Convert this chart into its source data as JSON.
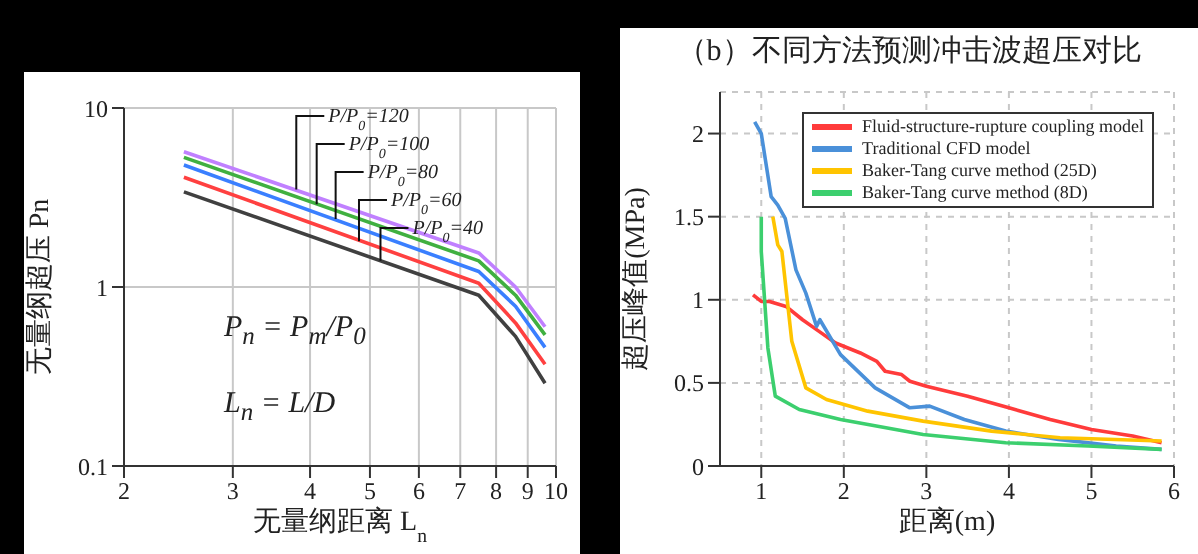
{
  "chart_data": [
    {
      "type": "line",
      "xlabel": "无量纲距离 L$_{n}$",
      "ylabel": "无量纲超压 Pn",
      "log": "xy",
      "xlim": [
        2,
        10
      ],
      "xticks": [
        2,
        3,
        4,
        5,
        6,
        7,
        8,
        9,
        10
      ],
      "ylim": [
        0.1,
        10
      ],
      "yticks": [
        0.1,
        1,
        10
      ],
      "grid": true,
      "marker": "none",
      "line_style": "solid",
      "series": [
        {
          "color": "#c080ff",
          "x": [
            2.5,
            7.5,
            8.6,
            9.6
          ],
          "values": [
            5.7,
            1.55,
            1.0,
            0.6
          ]
        },
        {
          "color": "#40b040",
          "x": [
            2.5,
            7.5,
            8.6,
            9.6
          ],
          "values": [
            5.3,
            1.4,
            0.9,
            0.54
          ]
        },
        {
          "color": "#3a7fff",
          "x": [
            2.5,
            7.5,
            8.6,
            9.6
          ],
          "values": [
            4.8,
            1.22,
            0.78,
            0.46
          ]
        },
        {
          "color": "#ff4040",
          "x": [
            2.5,
            7.5,
            8.6,
            9.6
          ],
          "values": [
            4.1,
            1.05,
            0.63,
            0.37
          ]
        },
        {
          "color": "#404040",
          "x": [
            2.5,
            7.5,
            8.6,
            9.6
          ],
          "values": [
            3.4,
            0.9,
            0.53,
            0.29
          ]
        }
      ],
      "annotations": [
        {
          "text": "P/P$_{0}$=120",
          "x": 3.8,
          "y": 3.5
        },
        {
          "text": "P/P$_{0}$=100",
          "x": 4.1,
          "y": 2.9
        },
        {
          "text": "P/P$_{0}$=80",
          "x": 4.4,
          "y": 2.4
        },
        {
          "text": "P/P$_{0}$=60",
          "x": 4.8,
          "y": 1.8
        },
        {
          "text": "P/P$_{0}$=40",
          "x": 5.2,
          "y": 1.4
        },
        "P$_{n}$ = P$_{m}$/P$_{0}$",
        "L$_{n}$ = L/D"
      ]
    },
    {
      "type": "line",
      "title": "（b）不同方法预测冲击波超压对比",
      "xlabel": "距离(m)",
      "ylabel": "超压峰值(MPa)",
      "xlim": [
        0.5,
        6
      ],
      "xticks": [
        1,
        2,
        3,
        4,
        5,
        6
      ],
      "ylim": [
        0,
        2.25
      ],
      "yticks": [
        0,
        0.5,
        1,
        1.5,
        2
      ],
      "grid": true,
      "legend": "top right",
      "marker": "none",
      "line_style": "solid",
      "series": [
        {
          "name": "Fluid-structure-rupture coupling model",
          "color": "#ff3b3b",
          "x": [
            0.9,
            1.0,
            1.1,
            1.3,
            1.5,
            1.7,
            1.9,
            2.2,
            2.4,
            2.5,
            2.7,
            2.8,
            3.0,
            3.5,
            4.0,
            4.5,
            5.0,
            5.5,
            5.85
          ],
          "values": [
            1.03,
            0.99,
            0.99,
            0.96,
            0.88,
            0.81,
            0.74,
            0.68,
            0.63,
            0.57,
            0.55,
            0.51,
            0.48,
            0.42,
            0.35,
            0.28,
            0.22,
            0.18,
            0.14
          ]
        },
        {
          "name": "Traditional CFD model",
          "color": "#4a90d9",
          "x": [
            0.92,
            1.0,
            1.12,
            1.2,
            1.29,
            1.42,
            1.54,
            1.67,
            1.71,
            1.96,
            2.38,
            2.8,
            3.04,
            3.46,
            3.96,
            4.6,
            5.3,
            5.85
          ],
          "values": [
            2.07,
            2.0,
            1.62,
            1.57,
            1.49,
            1.18,
            1.04,
            0.84,
            0.88,
            0.67,
            0.47,
            0.35,
            0.36,
            0.28,
            0.21,
            0.16,
            0.12,
            0.1
          ]
        },
        {
          "name": "Baker-Tang curve method (25D)",
          "color": "#ffc400",
          "x": [
            1.14,
            1.2,
            1.25,
            1.37,
            1.54,
            1.79,
            2.29,
            2.96,
            3.79,
            4.62,
            5.85
          ],
          "values": [
            1.5,
            1.33,
            1.29,
            0.75,
            0.47,
            0.4,
            0.33,
            0.27,
            0.21,
            0.17,
            0.15
          ]
        },
        {
          "name": "Baker-Tang curve method (8D)",
          "color": "#3ccf6e",
          "x": [
            1.0,
            1.0,
            1.08,
            1.17,
            1.46,
            1.96,
            2.96,
            3.96,
            4.96,
            5.85
          ],
          "values": [
            1.5,
            1.29,
            0.71,
            0.42,
            0.34,
            0.28,
            0.19,
            0.14,
            0.12,
            0.1
          ]
        }
      ]
    }
  ]
}
